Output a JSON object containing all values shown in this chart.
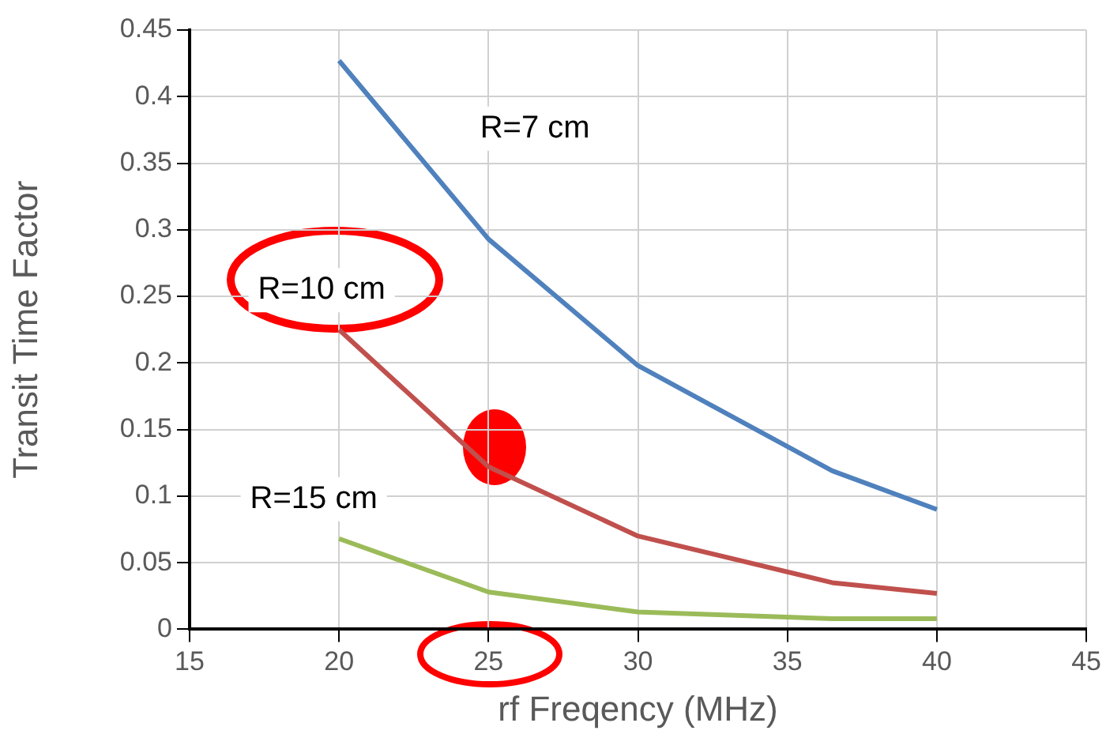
{
  "chart_data": {
    "type": "line",
    "xlabel": "rf Freqency (MHz)",
    "ylabel": "Transit Time Factor",
    "x": [
      20,
      25,
      30,
      36.5,
      40
    ],
    "series": [
      {
        "name": "R=7 cm",
        "color": "#4f81bd",
        "values": [
          0.427,
          0.293,
          0.198,
          0.119,
          0.09
        ]
      },
      {
        "name": "R=10 cm",
        "color": "#c0504d",
        "values": [
          0.225,
          0.122,
          0.07,
          0.035,
          0.027
        ]
      },
      {
        "name": "R=15 cm",
        "color": "#9bbb59",
        "values": [
          0.068,
          0.028,
          0.013,
          0.008,
          0.008
        ]
      }
    ],
    "xlim": [
      15,
      45
    ],
    "xticks": [
      15,
      20,
      25,
      30,
      35,
      40,
      45
    ],
    "ylim": [
      0,
      0.45
    ],
    "yticks": [
      0,
      0.05,
      0.1,
      0.15,
      0.2,
      0.25,
      0.3,
      0.35,
      0.4,
      0.45
    ],
    "grid": true,
    "legend": false,
    "marker": "none",
    "line_style": "solid"
  }
}
